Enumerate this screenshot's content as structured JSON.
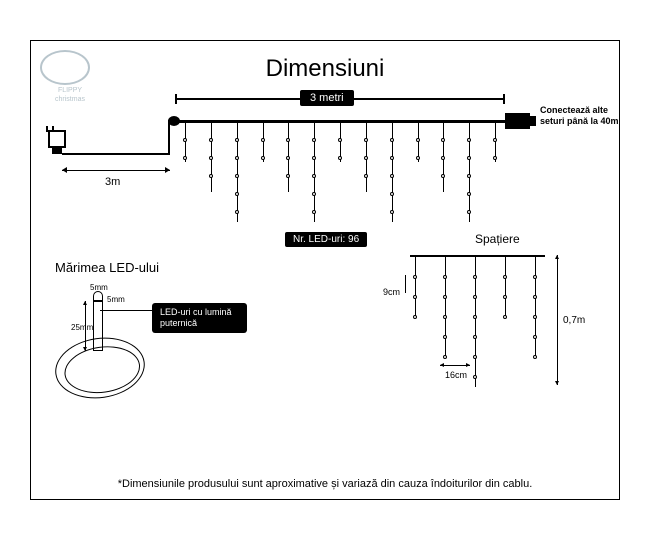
{
  "title": "Dimensiuni",
  "logo": {
    "line1": "FLIPPY",
    "line2": "christmas"
  },
  "topWidth": {
    "label": "3 metri"
  },
  "leadLength": "3m",
  "connectText": "Conectează alte seturi până la 40m",
  "ledCount": "Nr. LED-uri: 96",
  "curtain": {
    "strands": 13,
    "pattern": [
      40,
      70,
      100,
      40,
      70,
      100,
      40,
      70,
      100,
      40,
      70,
      100,
      40
    ],
    "bulbSpacing": 18
  },
  "ledSize": {
    "title": "Mărimea LED-ului",
    "topDim": "5mm",
    "sideDim": "5mm",
    "heightDim": "25mm",
    "callout": "LED-uri cu lumină puternică"
  },
  "spacing": {
    "title": "Spațiere",
    "vSpacing": "9cm",
    "hSpacing": "16cm",
    "height": "0,7m",
    "strands": 5,
    "pattern": [
      60,
      100,
      130,
      60,
      100
    ],
    "bulbSpacing": 20
  },
  "footnote": "*Dimensiunile produsului sunt aproximative și variază din cauza îndoiturilor din cablu.",
  "colors": {
    "ink": "#000000",
    "bg": "#ffffff",
    "logo": "#b8c5cc"
  }
}
